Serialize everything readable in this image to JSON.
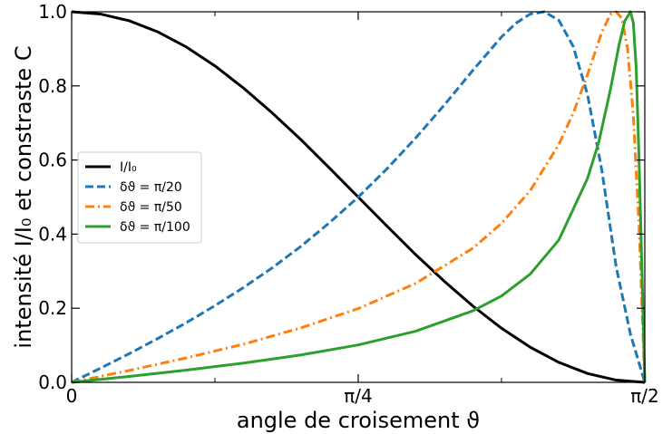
{
  "chart_data": {
    "type": "line",
    "xlabel": "angle de croisement ϑ",
    "ylabel": "intensité I/I₀ et constraste C",
    "xlim": [
      0,
      1.5708
    ],
    "ylim": [
      0,
      1.0
    ],
    "x_ticks": [
      {
        "value": 0,
        "label": "0"
      },
      {
        "value": 0.7854,
        "label": "π/4"
      },
      {
        "value": 1.5708,
        "label": "π/2"
      }
    ],
    "x_minor_ticks": [
      0.3927,
      1.1781
    ],
    "y_ticks": [
      {
        "value": 0.0,
        "label": "0.0"
      },
      {
        "value": 0.2,
        "label": "0.2"
      },
      {
        "value": 0.4,
        "label": "0.4"
      },
      {
        "value": 0.6,
        "label": "0.6"
      },
      {
        "value": 0.8,
        "label": "0.8"
      },
      {
        "value": 1.0,
        "label": "1.0"
      }
    ],
    "grid": false,
    "legend_placement": "center-left",
    "series": [
      {
        "name": "I/I₀",
        "color": "#000000",
        "dash": "solid",
        "x": [
          0,
          0.0785,
          0.1571,
          0.2356,
          0.3142,
          0.3927,
          0.4712,
          0.5498,
          0.6283,
          0.7069,
          0.7854,
          0.8639,
          0.9425,
          1.021,
          1.0996,
          1.1781,
          1.2566,
          1.3352,
          1.4137,
          1.4923,
          1.5708
        ],
        "y": [
          1.0,
          0.994,
          0.976,
          0.946,
          0.905,
          0.854,
          0.794,
          0.727,
          0.655,
          0.578,
          0.5,
          0.422,
          0.345,
          0.273,
          0.206,
          0.146,
          0.095,
          0.054,
          0.024,
          0.006,
          0.0
        ]
      },
      {
        "name": "δϑ = π/20",
        "color": "#1f77b4",
        "dash": "dashed",
        "x": [
          0,
          0.0785,
          0.1571,
          0.2356,
          0.3142,
          0.3927,
          0.4712,
          0.5498,
          0.6283,
          0.7069,
          0.7854,
          0.8639,
          0.9425,
          1.021,
          1.0996,
          1.1781,
          1.2174,
          1.2566,
          1.2959,
          1.3352,
          1.3744,
          1.4137,
          1.453,
          1.4923,
          1.5315,
          1.5708
        ],
        "y": [
          0.0,
          0.038,
          0.077,
          0.118,
          0.161,
          0.207,
          0.256,
          0.309,
          0.367,
          0.431,
          0.5,
          0.576,
          0.659,
          0.748,
          0.842,
          0.932,
          0.969,
          0.994,
          1.0,
          0.977,
          0.907,
          0.777,
          0.573,
          0.312,
          0.13,
          0.0
        ]
      },
      {
        "name": "δϑ = π/50",
        "color": "#ff7f0e",
        "dash": "dashdot",
        "x": [
          0,
          0.1571,
          0.3142,
          0.4712,
          0.6283,
          0.7854,
          0.9425,
          1.0996,
          1.1781,
          1.2566,
          1.3352,
          1.3744,
          1.4137,
          1.453,
          1.4765,
          1.4923,
          1.5081,
          1.5237,
          1.5394,
          1.5551,
          1.5708
        ],
        "y": [
          0.0,
          0.032,
          0.066,
          0.103,
          0.147,
          0.199,
          0.267,
          0.362,
          0.429,
          0.517,
          0.642,
          0.726,
          0.83,
          0.945,
          0.993,
          1.0,
          0.982,
          0.9,
          0.72,
          0.42,
          0.0
        ]
      },
      {
        "name": "δϑ = π/100",
        "color": "#2ca02c",
        "dash": "solid",
        "x": [
          0,
          0.1571,
          0.3142,
          0.4712,
          0.6283,
          0.7854,
          0.9425,
          1.0996,
          1.1781,
          1.2566,
          1.3352,
          1.4137,
          1.4451,
          1.4765,
          1.5001,
          1.5158,
          1.5315,
          1.5394,
          1.5472,
          1.5551,
          1.563,
          1.5708
        ],
        "y": [
          0.0,
          0.016,
          0.033,
          0.052,
          0.074,
          0.101,
          0.138,
          0.193,
          0.233,
          0.292,
          0.384,
          0.55,
          0.65,
          0.79,
          0.91,
          0.975,
          1.0,
          0.97,
          0.85,
          0.6,
          0.3,
          0.0
        ]
      }
    ]
  }
}
